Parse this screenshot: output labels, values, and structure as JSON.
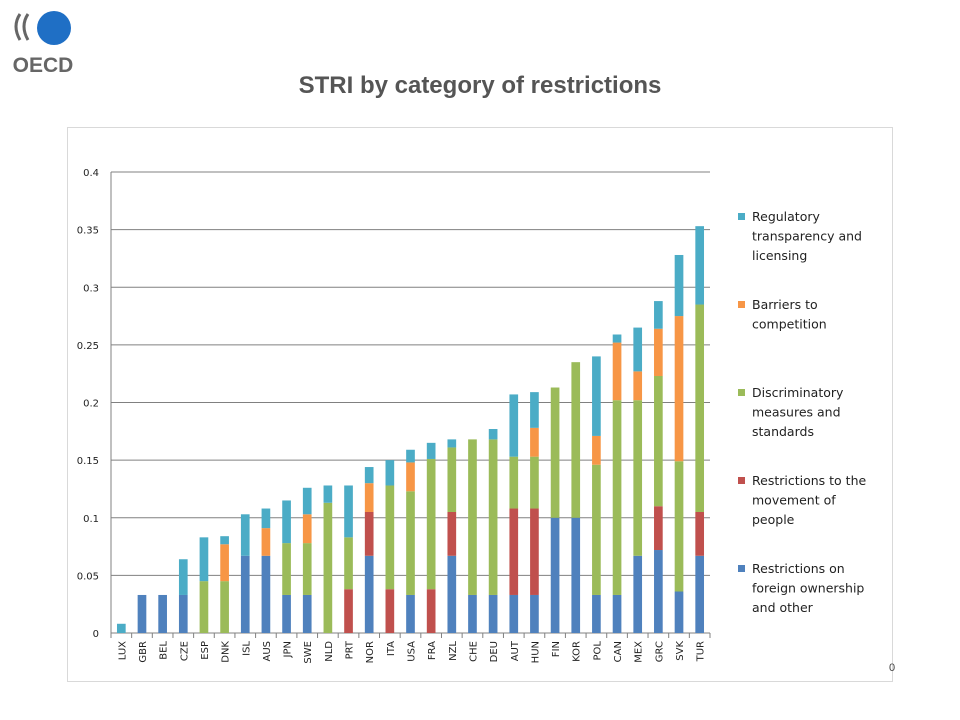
{
  "logo": {
    "text": "OECD"
  },
  "title": "STRI by category of restrictions",
  "page_number": "0",
  "chart_data": {
    "type": "bar",
    "stacked": true,
    "title": "",
    "xlabel": "",
    "ylabel": "",
    "ylim": [
      0,
      0.4
    ],
    "yticks": [
      0,
      0.05,
      0.1,
      0.15,
      0.2,
      0.25,
      0.3,
      0.35,
      0.4
    ],
    "ytick_labels": [
      "0",
      "0.05",
      "0.1",
      "0.15",
      "0.2",
      "0.25",
      "0.3",
      "0.35",
      "0.4"
    ],
    "grid": "horizontal",
    "legend_position": "right",
    "categories": [
      "LUX",
      "GBR",
      "BEL",
      "CZE",
      "ESP",
      "DNK",
      "ISL",
      "AUS",
      "JPN",
      "SWE",
      "NLD",
      "PRT",
      "NOR",
      "ITA",
      "USA",
      "FRA",
      "NZL",
      "CHE",
      "DEU",
      "AUT",
      "HUN",
      "FIN",
      "KOR",
      "POL",
      "CAN",
      "MEX",
      "GRC",
      "SVK",
      "TUR"
    ],
    "series": [
      {
        "name": "Restrictions on foreign ownership and other",
        "color": "#4f81bd",
        "values": [
          0,
          0.033,
          0.033,
          0.033,
          0,
          0,
          0.067,
          0.067,
          0.033,
          0.033,
          0,
          0,
          0.067,
          0,
          0.033,
          0,
          0.067,
          0.033,
          0.033,
          0.033,
          0.033,
          0.1,
          0.1,
          0.033,
          0.033,
          0.067,
          0.072,
          0.036,
          0.067
        ]
      },
      {
        "name": "Restrictions to the movement of people",
        "color": "#c0504d",
        "values": [
          0,
          0,
          0,
          0,
          0,
          0,
          0,
          0,
          0,
          0,
          0,
          0.038,
          0.038,
          0.038,
          0,
          0.038,
          0.038,
          0,
          0,
          0.075,
          0.075,
          0,
          0,
          0,
          0,
          0,
          0.038,
          0,
          0.038
        ]
      },
      {
        "name": "Discriminatory measures and standards",
        "color": "#9bbb59",
        "values": [
          0,
          0,
          0,
          0,
          0.045,
          0.045,
          0,
          0,
          0.045,
          0.045,
          0.113,
          0.045,
          0,
          0.09,
          0.09,
          0.113,
          0.056,
          0.135,
          0.135,
          0.045,
          0.045,
          0.113,
          0.135,
          0.113,
          0.169,
          0.135,
          0.113,
          0.113,
          0.18
        ]
      },
      {
        "name": "Barriers to competition",
        "color": "#f79646",
        "values": [
          0,
          0,
          0,
          0,
          0,
          0.032,
          0,
          0.024,
          0,
          0.025,
          0,
          0,
          0.025,
          0,
          0.025,
          0,
          0,
          0,
          0,
          0,
          0.025,
          0,
          0,
          0.025,
          0.05,
          0.025,
          0.041,
          0.126,
          0
        ]
      },
      {
        "name": "Regulatory transparency and licensing",
        "color": "#4bacc6",
        "values": [
          0.008,
          0,
          0,
          0.031,
          0.038,
          0.007,
          0.036,
          0.017,
          0.037,
          0.023,
          0.015,
          0.045,
          0.014,
          0.022,
          0.011,
          0.014,
          0.007,
          0,
          0.009,
          0.054,
          0.031,
          0,
          0,
          0.069,
          0.007,
          0.038,
          0.024,
          0.053,
          0.068
        ]
      }
    ],
    "legend_order": [
      4,
      3,
      2,
      1,
      0
    ],
    "legend_lines": [
      [
        "Regulatory",
        "transparency and",
        "licensing"
      ],
      [
        "Barriers to",
        "competition"
      ],
      [
        "Discriminatory",
        "measures and",
        "standards"
      ],
      [
        "Restrictions to the",
        "movement of",
        "people"
      ],
      [
        "Restrictions on",
        "foreign ownership",
        "and other"
      ]
    ]
  }
}
